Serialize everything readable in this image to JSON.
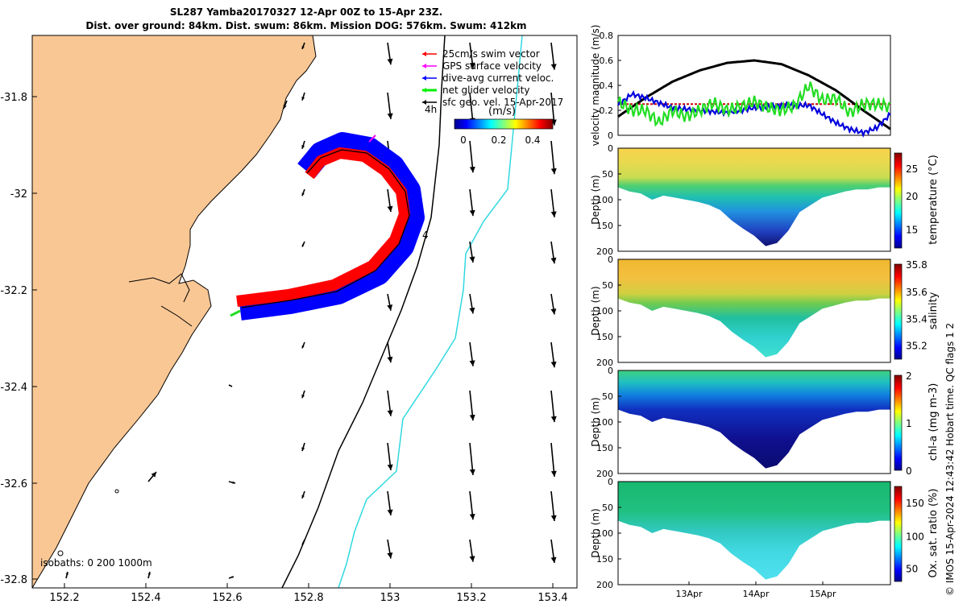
{
  "title": {
    "line1": "SL287 Yamba20170327 12-Apr 00Z to 15-Apr 23Z.",
    "line2": "Dist. over ground: 84km. Dist. swum: 86km. Mission DOG: 576km. Swum: 412km"
  },
  "credit": "© IMOS 15-Apr-2024 12:43:42 Hobart time. QC flags 1  2",
  "map": {
    "lon_ticks": [
      "152.2",
      "152.4",
      "152.6",
      "152.8",
      "153",
      "153.2",
      "153.4"
    ],
    "lat_ticks": [
      "-31.8",
      "-32",
      "-32.2",
      "-32.4",
      "-32.6",
      "-32.8"
    ],
    "legend": [
      {
        "label": "25cm/s swim vector",
        "color": "#ff0000"
      },
      {
        "label": "GPS surface velocity",
        "color": "#ff00ff"
      },
      {
        "label": "dive-avg current veloc.",
        "color": "#0000ff"
      },
      {
        "label": "net glider velocity",
        "color": "#00ee00"
      },
      {
        "label": "sfc geo. vel. 15-Apr-2017",
        "color": "#000000"
      }
    ],
    "colorbar": {
      "title": "(m/s)",
      "ticks": [
        "0",
        "0.2",
        "0.4"
      ]
    },
    "isobaths": "isobaths: 0   200  1000m",
    "track_labels": [
      "4h",
      "4"
    ],
    "colors": {
      "land": "#f9c794",
      "isobath_200": "#000000",
      "isobath_1000": "#30d8e0"
    }
  },
  "chart_data": [
    {
      "type": "line",
      "ylabel": "velocity magnitude (m/s)",
      "ylim": [
        0,
        0.8
      ],
      "yticks": [
        "0",
        "0.2",
        "0.4",
        "0.6",
        "0.8"
      ],
      "series": [
        {
          "color": "#000000",
          "x": [
            0,
            0.1,
            0.2,
            0.3,
            0.4,
            0.5,
            0.6,
            0.7,
            0.8,
            0.9,
            1.0
          ],
          "values": [
            0.15,
            0.3,
            0.43,
            0.52,
            0.58,
            0.6,
            0.57,
            0.48,
            0.36,
            0.2,
            0.05
          ]
        },
        {
          "color": "#0000dd",
          "x": [
            0,
            0.05,
            0.1,
            0.2,
            0.3,
            0.4,
            0.5,
            0.6,
            0.7,
            0.8,
            0.85,
            0.9,
            0.95,
            1.0
          ],
          "values": [
            0.24,
            0.33,
            0.3,
            0.22,
            0.2,
            0.18,
            0.22,
            0.24,
            0.24,
            0.1,
            0.05,
            0.02,
            0.06,
            0.17
          ]
        },
        {
          "color": "#22dd22",
          "x": [
            0,
            0.05,
            0.1,
            0.15,
            0.2,
            0.25,
            0.3,
            0.35,
            0.4,
            0.45,
            0.5,
            0.55,
            0.6,
            0.65,
            0.7,
            0.75,
            0.8,
            0.85,
            0.9,
            0.95,
            1.0
          ],
          "values": [
            0.27,
            0.2,
            0.2,
            0.1,
            0.2,
            0.15,
            0.2,
            0.26,
            0.2,
            0.23,
            0.27,
            0.22,
            0.2,
            0.24,
            0.4,
            0.28,
            0.3,
            0.18,
            0.25,
            0.25,
            0.23
          ]
        }
      ],
      "reference_line": {
        "color": "#cc0000",
        "value": 0.25
      }
    },
    {
      "type": "heatmap",
      "variable": "temperature",
      "ylabel": "Depth (m)",
      "clabel": "temperature (°C)",
      "cticks": [
        "15",
        "20",
        "25"
      ],
      "clim": [
        14,
        27
      ],
      "yticks": [
        "0",
        "50",
        "100",
        "150",
        "200"
      ]
    },
    {
      "type": "heatmap",
      "variable": "salinity",
      "ylabel": "Depth (m)",
      "clabel": "salinity",
      "cticks": [
        "35.2",
        "35.4",
        "35.6",
        "35.8"
      ],
      "clim": [
        35.1,
        35.8
      ],
      "yticks": [
        "0",
        "50",
        "100",
        "150",
        "200"
      ]
    },
    {
      "type": "heatmap",
      "variable": "chl-a",
      "ylabel": "Depth (m)",
      "clabel": "chl-a (mg m-3)",
      "cticks": [
        "0",
        "1",
        "2"
      ],
      "clim": [
        0,
        2
      ],
      "yticks": [
        "0",
        "50",
        "100",
        "150",
        "200"
      ]
    },
    {
      "type": "heatmap",
      "variable": "oxygen",
      "ylabel": "Depth (m)",
      "clabel": "Ox. sat. ratio (%)",
      "cticks": [
        "50",
        "100",
        "150"
      ],
      "clim": [
        30,
        175
      ],
      "yticks": [
        "0",
        "50",
        "100",
        "150",
        "200"
      ],
      "xticks": [
        "13Apr",
        "14Apr",
        "15Apr"
      ]
    }
  ]
}
